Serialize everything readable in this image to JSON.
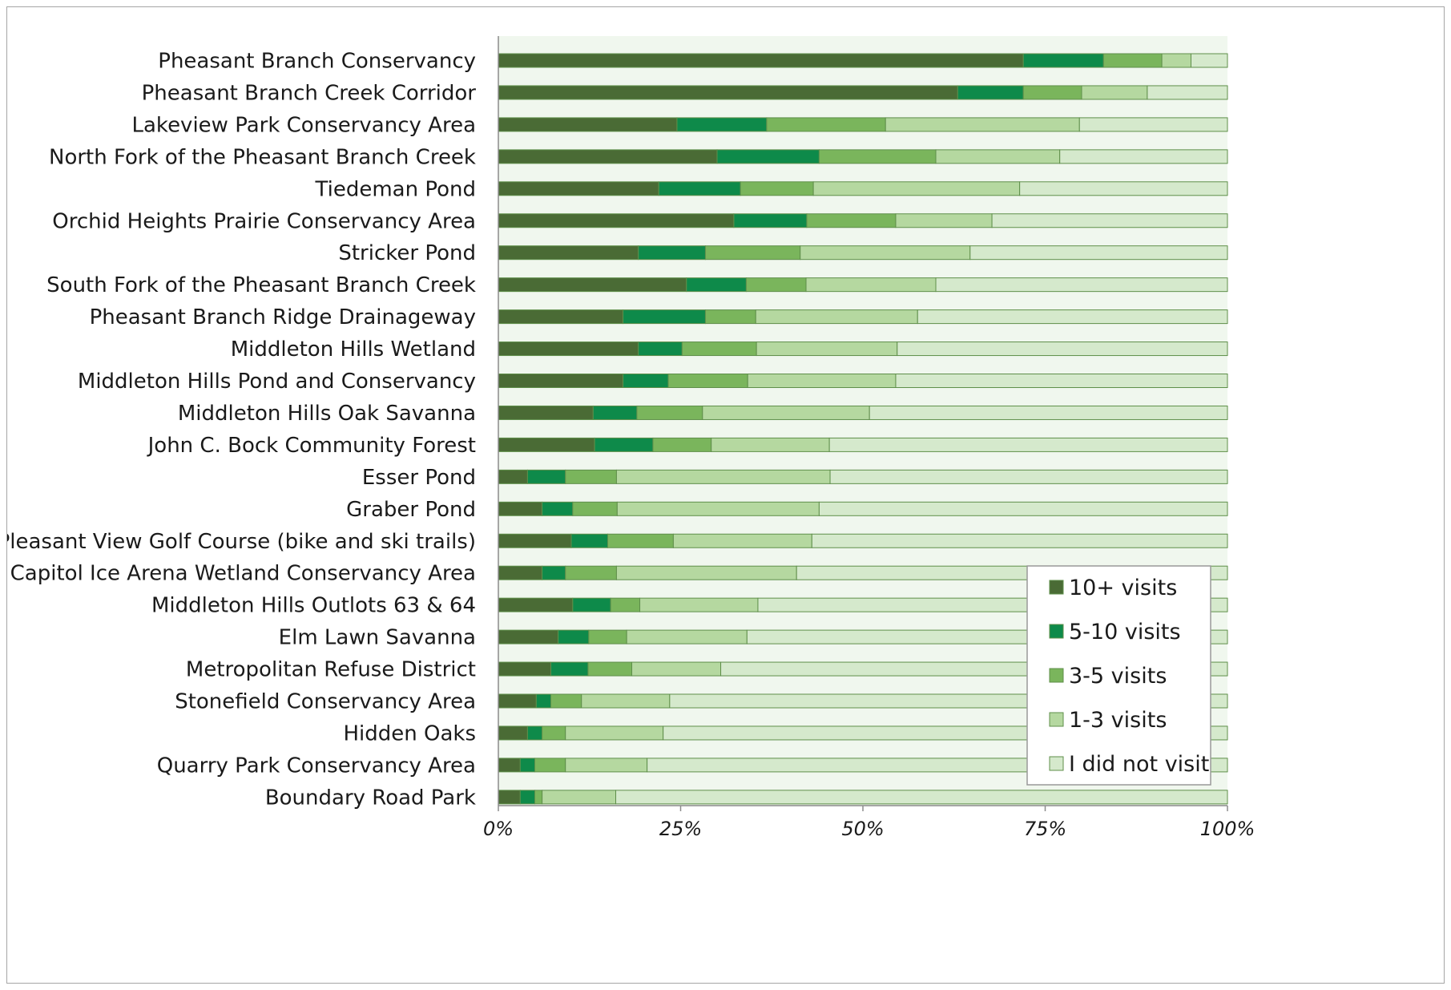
{
  "chart_data": {
    "type": "bar",
    "orientation": "horizontal",
    "stacked": "percent",
    "title": "",
    "xlabel": "",
    "ylabel": "",
    "xlim": [
      0,
      100
    ],
    "x_ticks": [
      "0%",
      "25%",
      "50%",
      "75%",
      "100%"
    ],
    "grid": false,
    "legend_position": "bottom-right",
    "categories": [
      "Pheasant Branch Conservancy",
      "Pheasant Branch Creek Corridor",
      "Lakeview Park Conservancy Area",
      "North Fork of the Pheasant Branch Creek",
      "Tiedeman Pond",
      "Orchid Heights Prairie Conservancy Area",
      "Stricker Pond",
      "South Fork of the Pheasant Branch Creek",
      "Pheasant Branch Ridge Drainageway",
      "Middleton Hills Wetland",
      "Middleton Hills Pond and Conservancy",
      "Middleton Hills Oak Savanna",
      "John C. Bock Community Forest",
      "Esser Pond",
      "Graber Pond",
      "Pleasant View Golf Course (bike and ski trails)",
      "Capitol Ice Arena Wetland Conservancy Area",
      "Middleton Hills Outlots 63 & 64",
      "Elm Lawn Savanna",
      "Metropolitan Refuse District",
      "Stonefield Conservancy Area",
      "Hidden Oaks",
      "Quarry Park Conservancy Area",
      "Boundary Road Park"
    ],
    "series": [
      {
        "name": "10+ visits",
        "color": "#4a6b35",
        "values": [
          72,
          63,
          24.5,
          30,
          22,
          32.3,
          19.2,
          25.8,
          17.1,
          19.2,
          17.1,
          13,
          13.2,
          4,
          6,
          10,
          6,
          10.2,
          8.2,
          7.2,
          5.2,
          4,
          3,
          3
        ]
      },
      {
        "name": "5-10 visits",
        "color": "#0e8a4a",
        "values": [
          11,
          9,
          12.3,
          14,
          11.2,
          10,
          9.2,
          8.2,
          11.3,
          6,
          6.2,
          6,
          8,
          5.2,
          4.2,
          5,
          3.2,
          5.2,
          4.2,
          5.1,
          2,
          2,
          2,
          2
        ]
      },
      {
        "name": "3-5 visits",
        "color": "#7ab55c",
        "values": [
          8,
          8,
          16.3,
          16,
          10,
          12.2,
          13,
          8.2,
          6.9,
          10.2,
          10.9,
          9,
          8,
          7,
          6.1,
          9,
          7,
          4,
          5.2,
          6,
          4.2,
          3.2,
          4.2,
          1
        ]
      },
      {
        "name": "1-3 visits",
        "color": "#b5d8a0",
        "values": [
          4,
          9,
          26.6,
          17,
          28.3,
          13.2,
          23.3,
          17.8,
          22.2,
          19.3,
          20.3,
          22.9,
          16.2,
          29.3,
          27.7,
          19,
          24.7,
          16.2,
          16.5,
          12.2,
          12.1,
          13.4,
          11.2,
          10.1
        ]
      },
      {
        "name": "I did not visit",
        "color": "#d5e9cc",
        "values": [
          5,
          11,
          20.3,
          23,
          28.5,
          32.3,
          35.3,
          40,
          42.5,
          45.3,
          45.5,
          49.1,
          54.6,
          54.5,
          56,
          57,
          59.1,
          64.4,
          65.9,
          69.5,
          76.5,
          77.4,
          79.6,
          83.9
        ]
      }
    ]
  }
}
